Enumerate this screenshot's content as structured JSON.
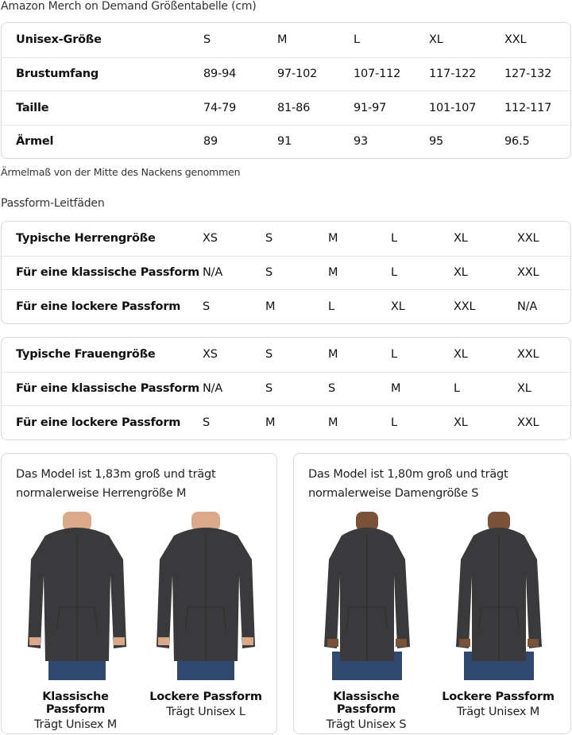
{
  "title": "Amazon Merch on Demand Größentabelle (cm)",
  "unisex_table": {
    "rows": [
      [
        "Unisex-Größe",
        "S",
        "M",
        "L",
        "XL",
        "XXL"
      ],
      [
        "Brustumfang",
        "89-94",
        "97-102",
        "107-112",
        "117-122",
        "127-132"
      ],
      [
        "Taille",
        "74-79",
        "81-86",
        "91-97",
        "101-107",
        "112-117"
      ],
      [
        "Ärmel",
        "89",
        "91",
        "93",
        "95",
        "96.5"
      ]
    ]
  },
  "note": "Ärmelmaß von der Mitte des Nackens genommen",
  "fit_heading": "Passform-Leitfäden",
  "men_table": {
    "rows": [
      [
        "Typische Herrengröße",
        "XS",
        "S",
        "M",
        "L",
        "XL",
        "XXL"
      ],
      [
        "Für eine klassische Passform",
        "N/A",
        "S",
        "M",
        "L",
        "XL",
        "XXL"
      ],
      [
        "Für eine lockere Passform",
        "S",
        "M",
        "L",
        "XL",
        "XXL",
        "N/A"
      ]
    ]
  },
  "women_table": {
    "rows": [
      [
        "Typische Frauengröße",
        "XS",
        "S",
        "M",
        "L",
        "XL",
        "XXL"
      ],
      [
        "Für eine klassische Passform",
        "N/A",
        "S",
        "S",
        "M",
        "L",
        "XL"
      ],
      [
        "Für eine lockere Passform",
        "S",
        "M",
        "M",
        "L",
        "XL",
        "XXL"
      ]
    ]
  },
  "cards": [
    {
      "text": "Das Model ist 1,83m groß und trägt normalerweise Herrengröße M",
      "figures": [
        {
          "title": "Klassische Passform",
          "sub": "Trägt Unisex M"
        },
        {
          "title": "Lockere Passform",
          "sub": "Trägt Unisex L"
        }
      ]
    },
    {
      "text": "Das Model ist 1,80m groß und trägt normalerweise Damengröße S",
      "figures": [
        {
          "title": "Klassische Passform",
          "sub": "Trägt Unisex S"
        },
        {
          "title": "Lockere Passform",
          "sub": "Trägt Unisex M"
        }
      ]
    }
  ],
  "colors": {
    "border": "#d5d9d9",
    "hoodie": "#3a3a3c",
    "jeans": "#2f4a6e"
  }
}
